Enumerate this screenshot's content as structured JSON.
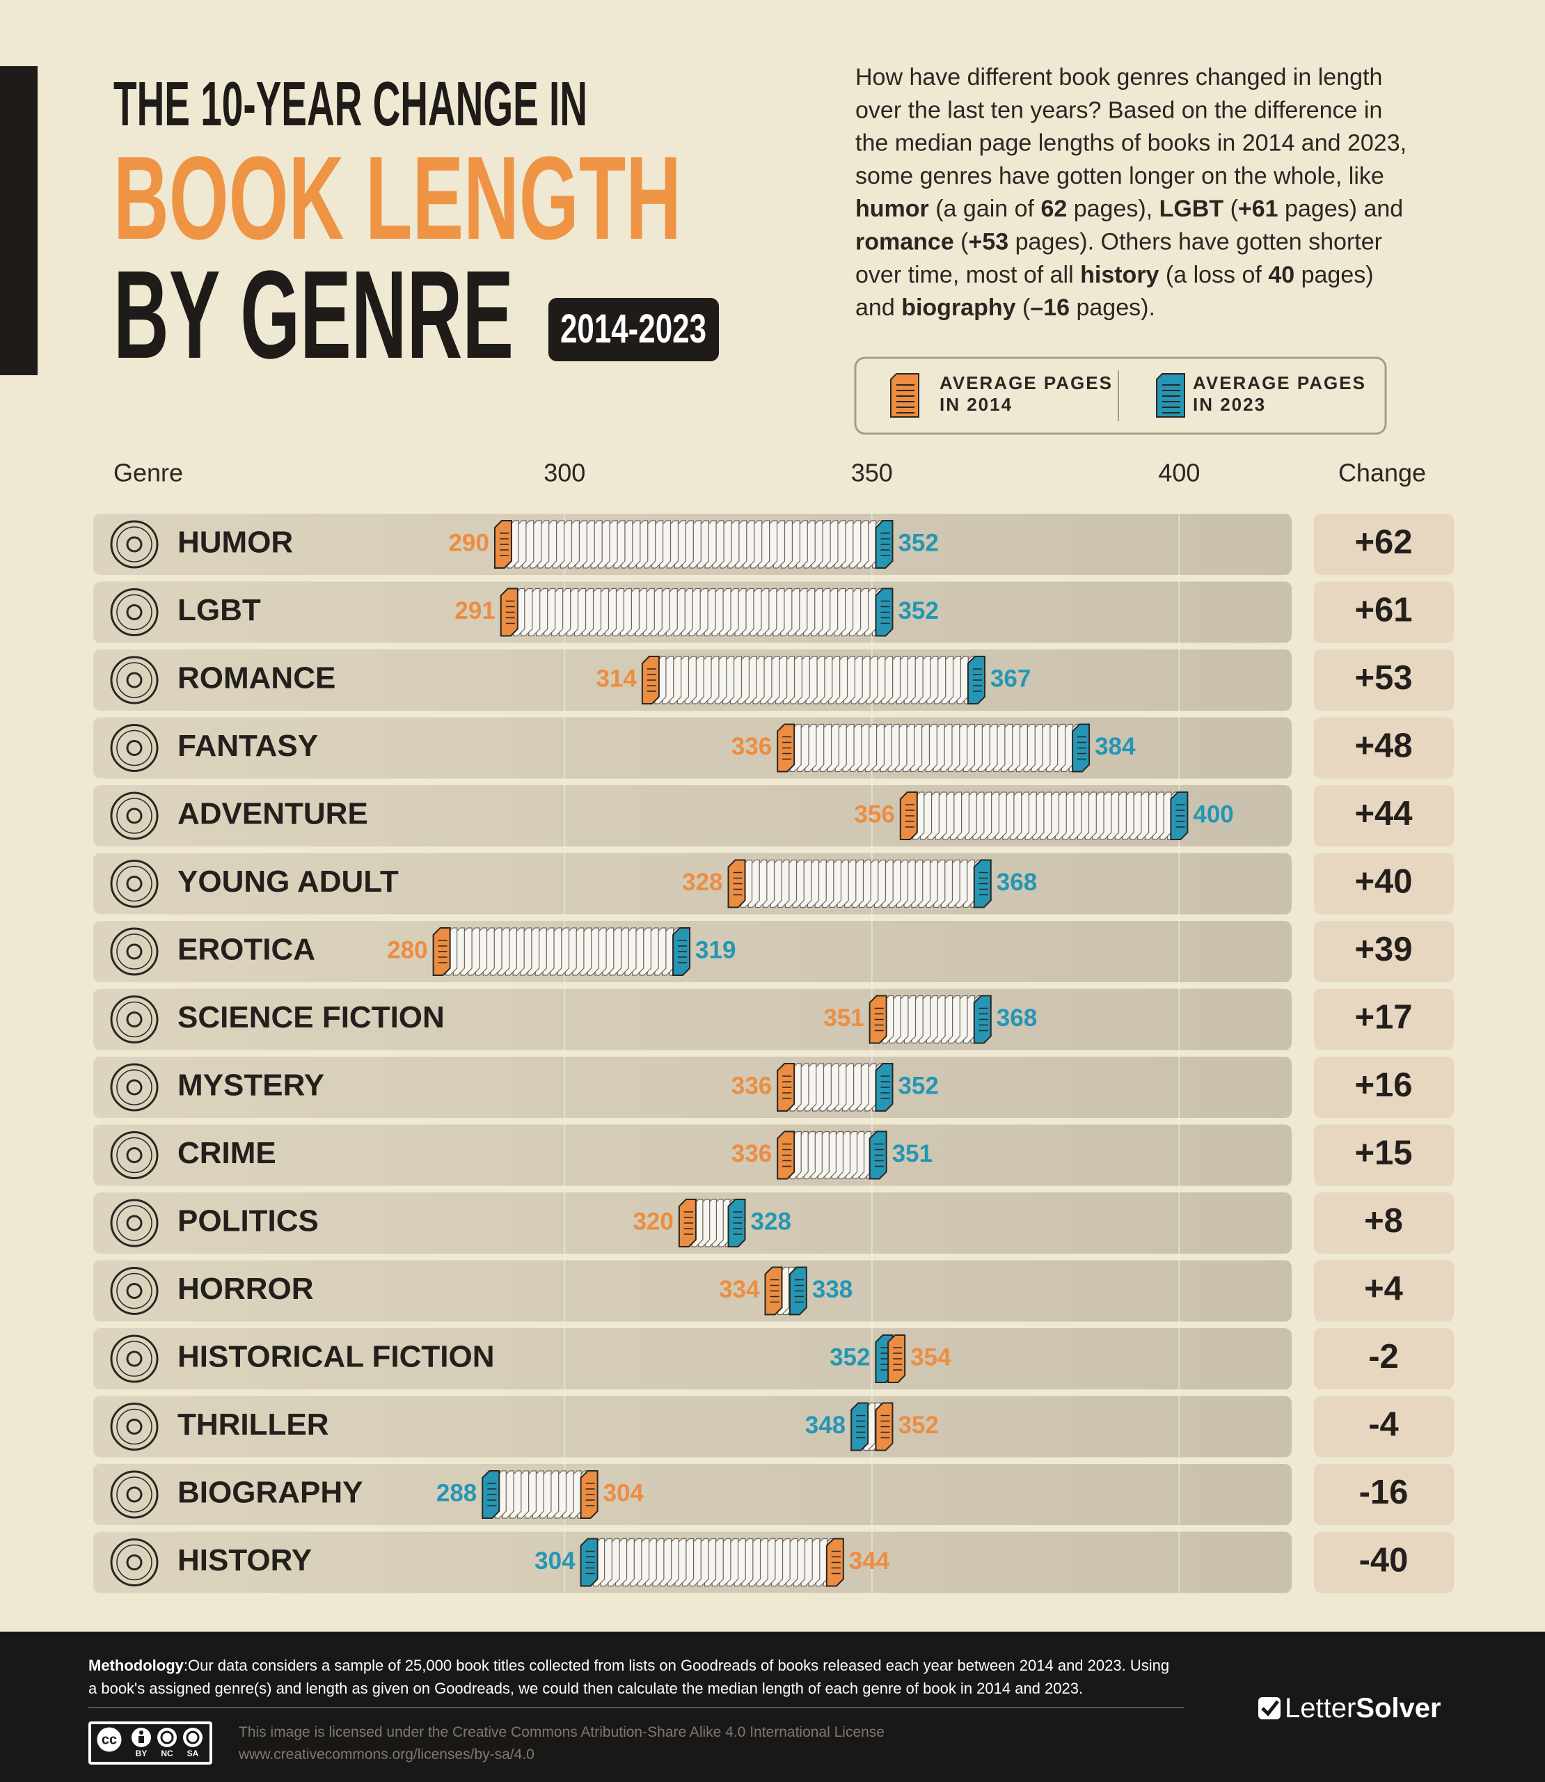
{
  "header": {
    "title_line1": "THE 10-YEAR CHANGE IN",
    "title_line2": "BOOK LENGTH",
    "title_line3": "BY GENRE",
    "years": "2014-2023"
  },
  "description": [
    [
      {
        "text": "How have different book genres changed in length",
        "bold": false
      }
    ],
    [
      {
        "text": "over the last ten years? Based on the difference in",
        "bold": false
      }
    ],
    [
      {
        "text": "the median page lengths of books in 2014 and 2023,",
        "bold": false
      }
    ],
    [
      {
        "text": "some genres have gotten longer on the whole, like",
        "bold": false
      }
    ],
    [
      {
        "text": "humor",
        "bold": true
      },
      {
        "text": " (a gain of ",
        "bold": false
      },
      {
        "text": "62",
        "bold": true
      },
      {
        "text": " pages), ",
        "bold": false
      },
      {
        "text": "LGBT",
        "bold": true
      },
      {
        "text": " (",
        "bold": false
      },
      {
        "text": "+61",
        "bold": true
      },
      {
        "text": " pages) and",
        "bold": false
      }
    ],
    [
      {
        "text": "romance",
        "bold": true
      },
      {
        "text": " (",
        "bold": false
      },
      {
        "text": "+53",
        "bold": true
      },
      {
        "text": " pages). Others have gotten shorter",
        "bold": false
      }
    ],
    [
      {
        "text": "over time, most of all ",
        "bold": false
      },
      {
        "text": "history",
        "bold": true
      },
      {
        "text": " (a loss of ",
        "bold": false
      },
      {
        "text": "40",
        "bold": true
      },
      {
        "text": " pages)",
        "bold": false
      }
    ],
    [
      {
        "text": "and ",
        "bold": false
      },
      {
        "text": "biography",
        "bold": true
      },
      {
        "text": " (",
        "bold": false
      },
      {
        "text": "–16",
        "bold": true
      },
      {
        "text": " pages).",
        "bold": false
      }
    ]
  ],
  "chart_data": {
    "type": "book_range",
    "category_label": "Genre",
    "categories": [
      "HUMOR",
      "LGBT",
      "ROMANCE",
      "FANTASY",
      "ADVENTURE",
      "YOUNG ADULT",
      "EROTICA",
      "SCIENCE FICTION",
      "MYSTERY",
      "CRIME",
      "POLITICS",
      "HORROR",
      "HISTORICAL FICTION",
      "THRILLER",
      "BIOGRAPHY",
      "HISTORY"
    ],
    "series": [
      {
        "name": "AVERAGE PAGES IN 2014",
        "color": "#ec8d41",
        "values": [
          290,
          291,
          314,
          336,
          356,
          328,
          280,
          351,
          336,
          336,
          320,
          334,
          354,
          352,
          304,
          344
        ]
      },
      {
        "name": "AVERAGE PAGES IN 2023",
        "color": "#2596b4",
        "values": [
          352,
          352,
          367,
          384,
          400,
          368,
          319,
          368,
          352,
          351,
          328,
          338,
          352,
          348,
          288,
          304
        ]
      }
    ],
    "change": {
      "label": "Change",
      "values": [
        62,
        61,
        53,
        48,
        44,
        40,
        39,
        17,
        16,
        15,
        8,
        4,
        -2,
        -4,
        -16,
        -40
      ],
      "value_labels": [
        "+62",
        "+61",
        "+53",
        "+48",
        "+44",
        "+40",
        "+39",
        "+17",
        "+16",
        "+15",
        "+8",
        "+4",
        "-2",
        "-4",
        "-16",
        "-40"
      ]
    },
    "xlim": [
      260,
      420
    ],
    "xticks": [
      300,
      350,
      400
    ],
    "grid": true
  },
  "footer": {
    "methodology_label": "Methodology",
    "methodology_text": [
      ":Our data considers a sample of 25,000 book titles collected from lists on Goodreads of books released each year between 2014 and 2023. Using",
      "a book's assigned genre(s) and length as given on Goodreads, we could then calculate the median length of each genre of book in 2014 and 2023."
    ],
    "license": [
      "This image is licensed under the Creative Commons Atribution-Share Alike 4.0 International License",
      "www.creativecommons.org/licenses/by-sa/4.0"
    ],
    "cc_logo": "cc",
    "cc_labels": [
      "BY",
      "NC",
      "SA"
    ],
    "brand": [
      "Letter",
      "Solver"
    ]
  }
}
